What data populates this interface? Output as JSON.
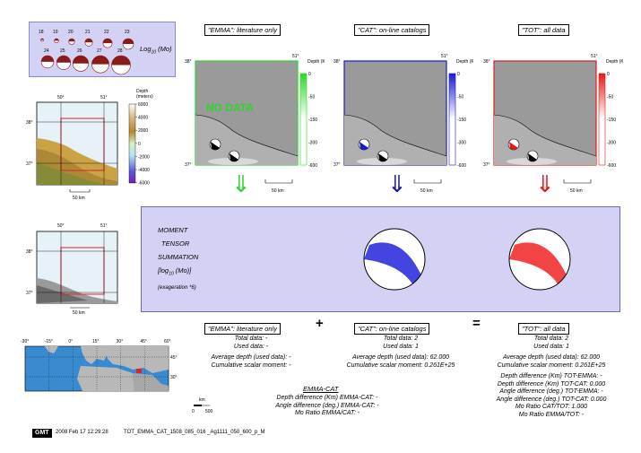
{
  "legend": {
    "numbers": [
      "18",
      "19",
      "20",
      "21",
      "22",
      "23",
      "24",
      "25",
      "26",
      "27",
      "28"
    ],
    "unit_label": "Log",
    "unit_sub": "10",
    "unit_tail": "(Mo)"
  },
  "colors": {
    "emma": "#2bd62b",
    "cat": "#1a1ad0",
    "tot": "#e21a1a",
    "panel_bg": "#d3d2f5",
    "land": "#c8a24a",
    "sea": "#e6f2f7"
  },
  "panels": [
    {
      "id": "emma",
      "title": "\"EMMA\": literature only",
      "depth_label": "Depth (Km)",
      "ticks": [
        "0",
        "-50",
        "-150",
        "-300",
        "-600"
      ],
      "no_data": "NO DATA",
      "scale": "50 km",
      "lat_tick": "38°",
      "lat_tick2": "37°",
      "lon_tick": "51°"
    },
    {
      "id": "cat",
      "title": "\"CAT\": on-line catalogs",
      "depth_label": "Depth (Km)",
      "ticks": [
        "0",
        "-50",
        "-150",
        "-300",
        "-600"
      ],
      "no_data": "",
      "scale": "50 km",
      "lat_tick": "38°",
      "lat_tick2": "37°",
      "lon_tick": "51°"
    },
    {
      "id": "tot",
      "title": "\"TOT\": all data",
      "depth_label": "Depth (Km)",
      "ticks": [
        "0",
        "-50",
        "-150",
        "-300",
        "-600"
      ],
      "no_data": "",
      "scale": "50 km",
      "lat_tick": "38°",
      "lat_tick2": "37°",
      "lon_tick": "51°"
    }
  ],
  "left_maps": {
    "map1": {
      "lon_ticks": [
        "50°",
        "51°"
      ],
      "lat_ticks": [
        "38°",
        "37°"
      ],
      "scale": "50 km",
      "depth_label": "Depth",
      "depth_unit": "(meters)",
      "depth_ticks": [
        "6000",
        "4000",
        "2000",
        "0",
        "-2000",
        "-4000",
        "-6000"
      ]
    },
    "map2": {
      "lon_ticks": [
        "50°",
        "51°"
      ],
      "lat_ticks": [
        "38°",
        "37°"
      ],
      "scale": "50 km"
    },
    "map3": {
      "lon_ticks": [
        "-30°",
        "-15°",
        "0°",
        "15°",
        "30°",
        "45°",
        "60°"
      ],
      "lat_ticks": [
        "45°",
        "30°"
      ],
      "scale_label": "km",
      "scale_ticks": [
        "0",
        "500"
      ]
    }
  },
  "summation": {
    "lines": [
      "MOMENT",
      "TENSOR",
      "SUMMATION"
    ],
    "log_label": "[log",
    "log_sub": "10",
    "log_tail": "(Mo)]",
    "exaggeration": "(exageration *6)"
  },
  "arrows": [
    "⇓",
    "⇓",
    "⇓"
  ],
  "operators": {
    "plus": "+",
    "equals": "="
  },
  "stats": {
    "emma": {
      "title": "\"EMMA\": literature only",
      "lines": [
        "Total data: -",
        "Used data: -",
        "",
        "Average depth (used data): -",
        "Cumulative scalar moment: -"
      ]
    },
    "cat": {
      "title": "\"CAT\": on-line catalogs",
      "lines": [
        "Total data:    2",
        "Used data:    1",
        "",
        "Average depth (used data):    62.000",
        "Cumulative scalar moment: 0.261E+25"
      ]
    },
    "tot": {
      "title": "\"TOT\": all data",
      "lines": [
        "Total data:    2",
        "Used data:    1",
        "",
        "Average depth (used data):    62.000",
        "Cumulative scalar moment: 0.261E+25",
        "",
        "Depth difference (Km) TOT-EMMA: -",
        "Depth difference (Km) TOT-CAT:    0.000",
        "Angle difference (deg.) TOT-EMMA: -",
        "Angle difference (deg.) TOT-CAT:    0.000",
        "Mo Ratio CAT/TOT:    1.000",
        "Mo Ratio EMMA/TOT: -"
      ]
    },
    "emma_cat": {
      "title": "EMMA-CAT",
      "lines": [
        "Depth difference (Km) EMMA-CAT: -",
        "Angle difference (deg.) EMMA-CAT: -",
        "Mo Ratio EMMA/CAT: -"
      ]
    }
  },
  "footer": {
    "logo": "GMT",
    "date": "2008 Feb 17 12:29:28",
    "file": "TOT_EMMA_CAT_1508_085_016 _Ag1111_050_600_p_M"
  }
}
